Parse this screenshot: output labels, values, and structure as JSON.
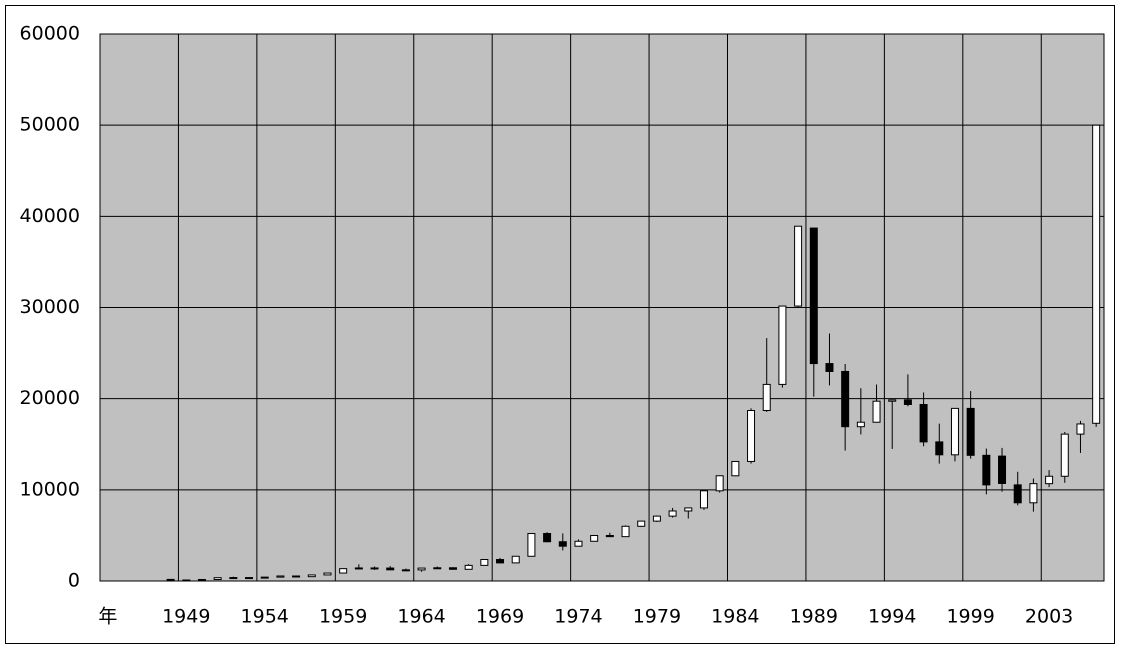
{
  "chart_data": {
    "type": "candlestick",
    "categories": [
      "年",
      null,
      null,
      null,
      null,
      "1949",
      null,
      null,
      null,
      null,
      "1954",
      null,
      null,
      null,
      null,
      "1959",
      null,
      null,
      null,
      null,
      "1964",
      null,
      null,
      null,
      null,
      "1969",
      null,
      null,
      null,
      null,
      "1974",
      null,
      null,
      null,
      null,
      "1979",
      null,
      null,
      null,
      null,
      "1984",
      null,
      null,
      null,
      null,
      "1989",
      null,
      null,
      null,
      null,
      "1994",
      null,
      null,
      null,
      null,
      "1999",
      null,
      null,
      null,
      null,
      "2003",
      null,
      null,
      null
    ],
    "open": [
      null,
      null,
      null,
      null,
      176,
      109,
      101,
      166,
      362,
      377,
      356,
      425,
      549,
      475,
      666,
      874,
      1356,
      1432,
      1420,
      1225,
      1216,
      1417,
      1452,
      1283,
      1714,
      2358,
      1987,
      2713,
      5207,
      4306,
      3817,
      4358,
      4990,
      4865,
      6001,
      6569,
      7116,
      7681,
      8016,
      9893,
      11542,
      13113,
      18701,
      21564,
      30159,
      38713,
      23849,
      22984,
      16925,
      17417,
      19723,
      19868,
      19361,
      15259,
      13842,
      18934,
      13786,
      13700,
      10543,
      8579,
      10677,
      11489,
      16111,
      17300
    ],
    "high": [
      null,
      null,
      null,
      null,
      176,
      120,
      166,
      362,
      474,
      377,
      425,
      549,
      595,
      666,
      874,
      1356,
      1829,
      1589,
      1634,
      1369,
      1417,
      1588,
      1506,
      1851,
      2358,
      2534,
      2740,
      5207,
      5359,
      5218,
      4564,
      4990,
      5287,
      6097,
      6590,
      7188,
      8019,
      8026,
      9893,
      11577,
      13129,
      18936,
      26646,
      30159,
      38916,
      38713,
      27147,
      23801,
      21148,
      21552,
      19868,
      22666,
      20681,
      17264,
      18934,
      20833,
      14529,
      14600,
      11980,
      11238,
      12163,
      16344,
      17563,
      50000
    ],
    "low": [
      null,
      null,
      null,
      null,
      85,
      85,
      101,
      163,
      295,
      314,
      356,
      425,
      471,
      475,
      666,
      874,
      1258,
      1216,
      1200,
      1203,
      1020,
      1364,
      1250,
      1283,
      1714,
      1929,
      1981,
      2713,
      4264,
      3355,
      3817,
      4358,
      4839,
      4865,
      5926,
      6475,
      6957,
      6849,
      7803,
      9703,
      11500,
      12881,
      18544,
      21217,
      30000,
      20222,
      21456,
      14309,
      16078,
      17370,
      14485,
      19161,
      14775,
      12879,
      13122,
      13423,
      9504,
      9800,
      8303,
      7603,
      10299,
      10770,
      14045,
      16900
    ],
    "close": [
      null,
      null,
      null,
      null,
      109,
      101,
      166,
      362,
      377,
      356,
      425,
      549,
      475,
      666,
      874,
      1356,
      1432,
      1420,
      1225,
      1216,
      1417,
      1452,
      1283,
      1714,
      2358,
      1987,
      2713,
      5207,
      4306,
      3817,
      4358,
      4990,
      4865,
      6001,
      6569,
      7116,
      7681,
      8016,
      9893,
      11542,
      13113,
      18701,
      21564,
      30159,
      38916,
      23849,
      22984,
      16925,
      17417,
      19723,
      19868,
      19361,
      15259,
      13842,
      18934,
      13786,
      10543,
      10700,
      8579,
      10677,
      11489,
      16111,
      17226,
      50000
    ],
    "up_color": "#ffffff",
    "down_color": "#000000",
    "plot_background": "#c0c0c0",
    "ylim": [
      0,
      60000
    ],
    "yticks": [
      0,
      10000,
      20000,
      30000,
      40000,
      50000,
      60000
    ],
    "grid": true,
    "category_grid_every": 5
  }
}
